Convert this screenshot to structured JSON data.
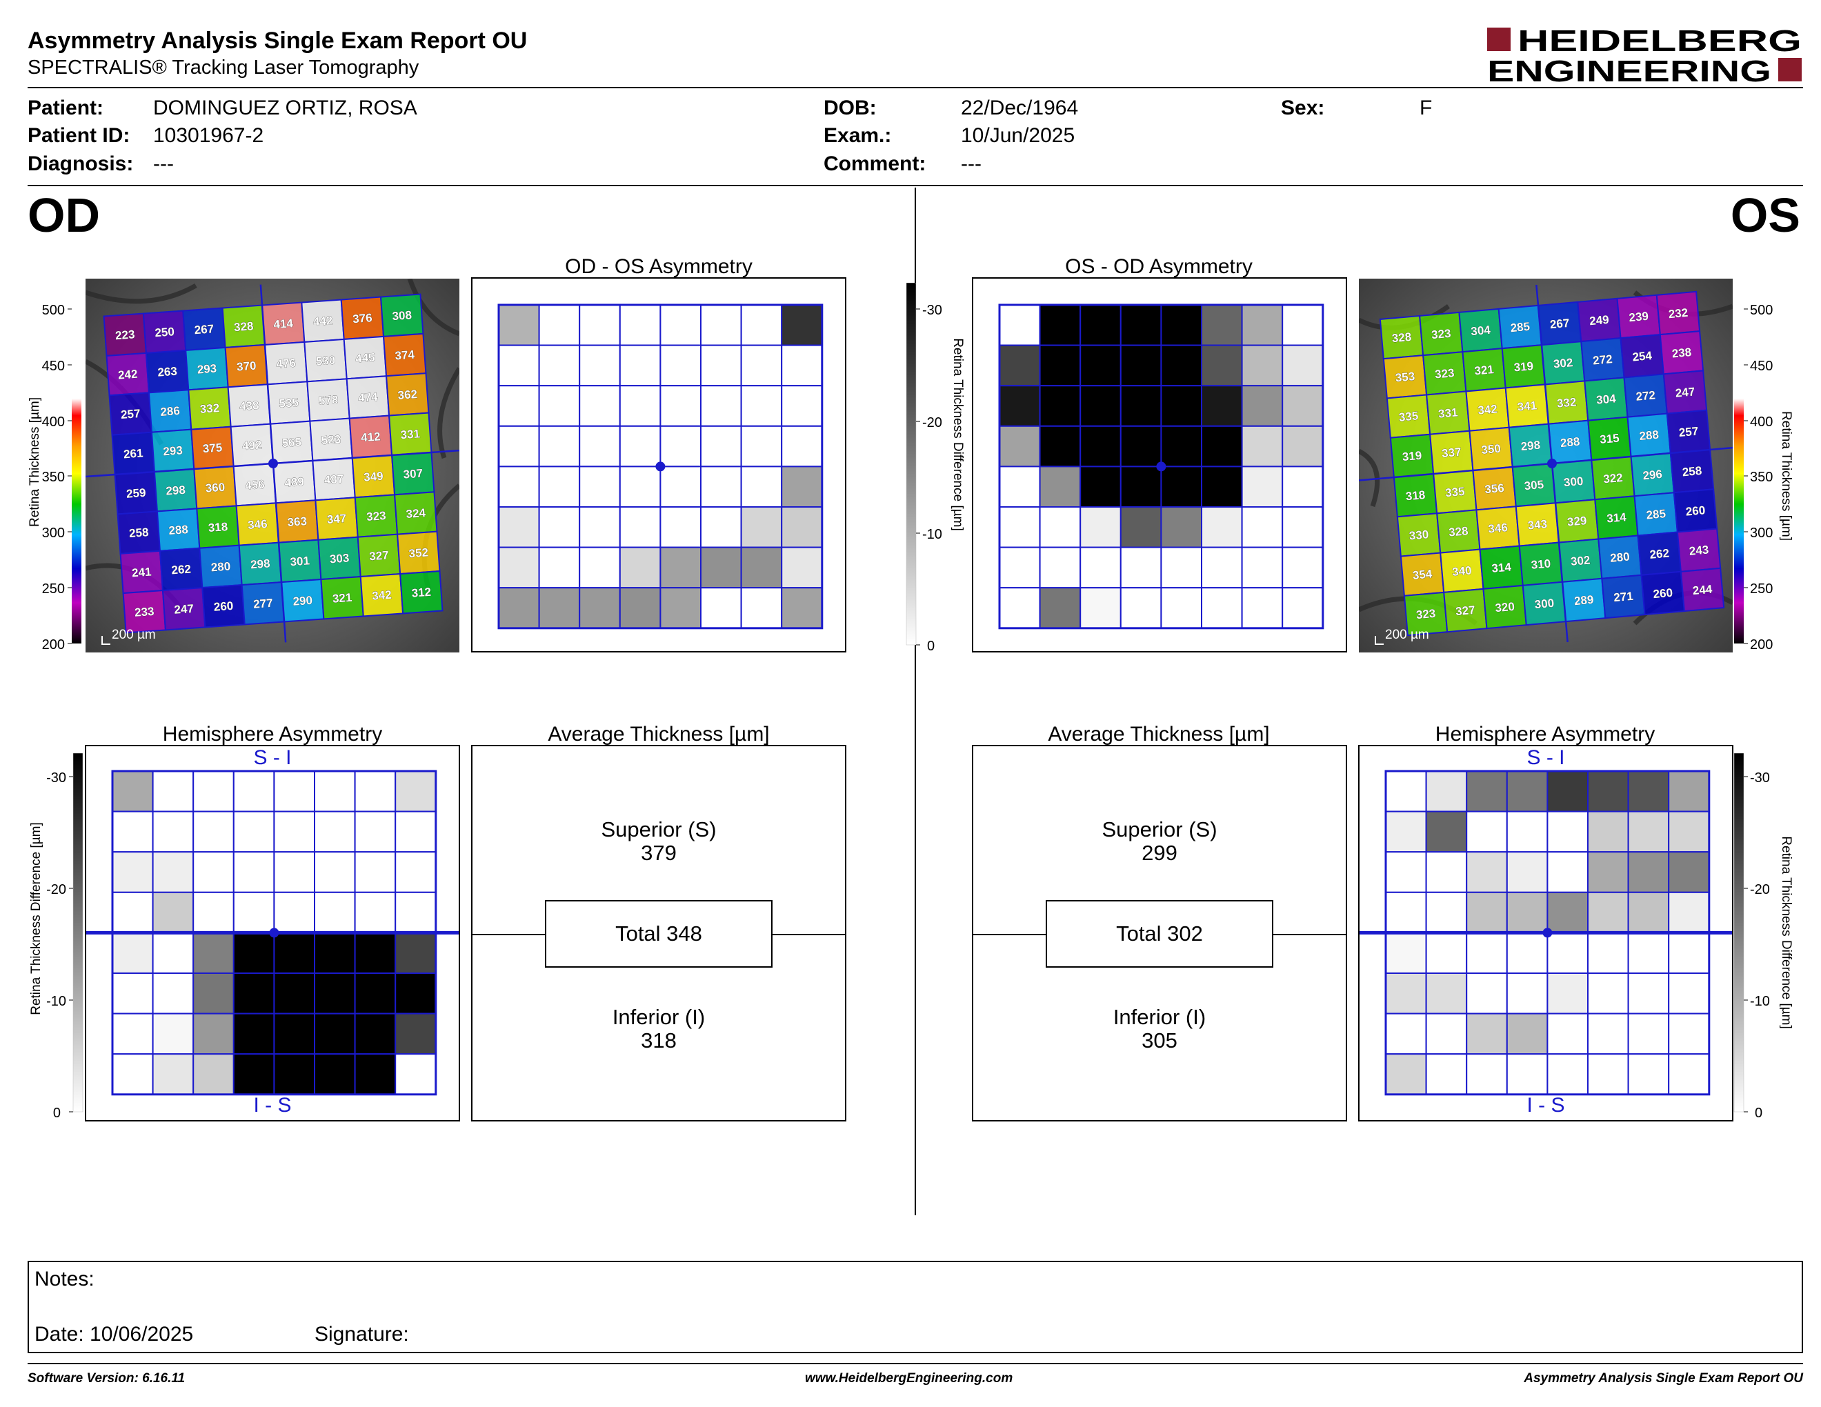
{
  "report": {
    "title": "Asymmetry Analysis Single Exam Report OU",
    "subtitle": "SPECTRALIS® Tracking Laser Tomography",
    "logo_line1": "HEIDELBERG",
    "logo_line2": "ENGINEERING"
  },
  "patient": {
    "patient_label": "Patient:",
    "patient_value": "DOMINGUEZ ORTIZ, ROSA",
    "id_label": "Patient ID:",
    "id_value": "10301967-2",
    "diagnosis_label": "Diagnosis:",
    "diagnosis_value": "---",
    "dob_label": "DOB:",
    "dob_value": "22/Dec/1964",
    "exam_label": "Exam.:",
    "exam_value": "10/Jun/2025",
    "comment_label": "Comment:",
    "comment_value": "---",
    "sex_label": "Sex:",
    "sex_value": "F"
  },
  "eyes": {
    "od": "OD",
    "os": "OS"
  },
  "panels": {
    "od_os_asym": "OD - OS Asymmetry",
    "os_od_asym": "OS - OD Asymmetry",
    "hemi_od": "Hemisphere Asymmetry",
    "hemi_os": "Hemisphere Asymmetry",
    "avg_od": "Average Thickness [µm]",
    "avg_os": "Average Thickness [µm]",
    "hemi_top": "S - I",
    "hemi_bottom": "I - S"
  },
  "scales": {
    "thickness_label": "Retina  Thickness [µm]",
    "thickness_ticks": [
      "500",
      "450",
      "400",
      "350",
      "300",
      "250",
      "200"
    ],
    "diff_label": "Retina Thickness Difference [µm]",
    "diff_ticks": [
      "-30",
      "-20",
      "-10",
      "0"
    ],
    "scale_bar": "200 µm"
  },
  "od_thickness": [
    [
      223,
      250,
      267,
      328,
      414,
      442,
      376,
      308
    ],
    [
      242,
      263,
      293,
      370,
      476,
      530,
      445,
      374
    ],
    [
      257,
      286,
      332,
      438,
      535,
      578,
      474,
      362
    ],
    [
      261,
      293,
      375,
      492,
      565,
      523,
      412,
      331
    ],
    [
      259,
      298,
      360,
      456,
      489,
      487,
      349,
      307
    ],
    [
      258,
      288,
      318,
      346,
      363,
      347,
      323,
      324
    ],
    [
      241,
      262,
      280,
      298,
      301,
      303,
      327,
      352
    ],
    [
      233,
      247,
      260,
      277,
      290,
      321,
      342,
      312
    ]
  ],
  "os_thickness": [
    [
      328,
      323,
      304,
      285,
      267,
      249,
      239,
      232
    ],
    [
      353,
      323,
      321,
      319,
      302,
      272,
      254,
      238
    ],
    [
      335,
      331,
      342,
      341,
      332,
      304,
      272,
      247
    ],
    [
      319,
      337,
      350,
      298,
      288,
      315,
      288,
      257
    ],
    [
      318,
      335,
      356,
      305,
      300,
      322,
      296,
      258
    ],
    [
      330,
      328,
      346,
      343,
      329,
      314,
      285,
      260
    ],
    [
      354,
      340,
      314,
      310,
      302,
      280,
      262,
      243
    ],
    [
      323,
      327,
      320,
      300,
      289,
      271,
      260,
      244
    ]
  ],
  "od_os_diff": [
    [
      -9,
      0,
      0,
      0,
      0,
      0,
      0,
      -24
    ],
    [
      0,
      0,
      0,
      0,
      0,
      0,
      0,
      0
    ],
    [
      0,
      0,
      0,
      0,
      0,
      0,
      0,
      0
    ],
    [
      0,
      0,
      0,
      0,
      0,
      0,
      0,
      0
    ],
    [
      0,
      0,
      0,
      0,
      0,
      0,
      0,
      -11
    ],
    [
      -3,
      0,
      0,
      0,
      0,
      0,
      -5,
      -6
    ],
    [
      -3,
      0,
      0,
      -5,
      -11,
      -13,
      -13,
      -3
    ],
    [
      -12,
      -12,
      -12,
      -13,
      -11,
      0,
      0,
      -11
    ]
  ],
  "os_od_diff": [
    [
      0,
      -30,
      -30,
      -30,
      -30,
      -18,
      -10,
      0
    ],
    [
      -22,
      -30,
      -30,
      -30,
      -30,
      -20,
      -8,
      -3
    ],
    [
      -27,
      -30,
      -30,
      -30,
      -30,
      -27,
      -13,
      -7
    ],
    [
      -11,
      -30,
      -30,
      -30,
      -30,
      -30,
      -5,
      -6
    ],
    [
      0,
      -13,
      -30,
      -30,
      -30,
      -30,
      -2,
      0
    ],
    [
      0,
      0,
      -2,
      -19,
      -15,
      -2,
      0,
      0
    ],
    [
      0,
      0,
      0,
      0,
      0,
      0,
      0,
      0
    ],
    [
      0,
      -16,
      -1,
      0,
      0,
      0,
      0,
      0
    ]
  ],
  "hemi_od_diff": [
    [
      -10,
      0,
      0,
      0,
      0,
      0,
      0,
      -4
    ],
    [
      0,
      0,
      0,
      0,
      0,
      0,
      0,
      0
    ],
    [
      -2,
      -2,
      0,
      0,
      0,
      0,
      0,
      0
    ],
    [
      0,
      -6,
      0,
      0,
      0,
      0,
      0,
      0
    ],
    [
      -2,
      0,
      -15,
      -30,
      -30,
      -30,
      -30,
      -22
    ],
    [
      0,
      0,
      -16,
      -30,
      -30,
      -30,
      -30,
      -30
    ],
    [
      0,
      -1,
      -12,
      -30,
      -30,
      -30,
      -30,
      -22
    ],
    [
      0,
      -3,
      -6,
      -30,
      -30,
      -30,
      -30,
      0
    ]
  ],
  "hemi_os_diff": [
    [
      0,
      -3,
      -16,
      -16,
      -23,
      -21,
      -20,
      -11
    ],
    [
      -2,
      -18,
      0,
      0,
      0,
      -6,
      -5,
      -5
    ],
    [
      0,
      0,
      -4,
      -2,
      0,
      -10,
      -13,
      -15
    ],
    [
      0,
      0,
      -7,
      -8,
      -13,
      -6,
      -7,
      -2
    ],
    [
      -1,
      0,
      0,
      0,
      0,
      0,
      0,
      0
    ],
    [
      -4,
      -4,
      0,
      0,
      -2,
      0,
      0,
      0
    ],
    [
      0,
      0,
      -6,
      -8,
      0,
      0,
      0,
      0
    ],
    [
      -5,
      0,
      0,
      0,
      0,
      0,
      0,
      0
    ]
  ],
  "avg_od": {
    "superior_label": "Superior (S)",
    "superior": "379",
    "total": "Total 348",
    "inferior_label": "Inferior (I)",
    "inferior": "318"
  },
  "avg_os": {
    "superior_label": "Superior (S)",
    "superior": "299",
    "total": "Total 302",
    "inferior_label": "Inferior (I)",
    "inferior": "305"
  },
  "notes": {
    "notes_label": "Notes:",
    "date": "Date: 10/06/2025",
    "signature": "Signature:"
  },
  "footer": {
    "left": "Software Version: 6.16.11",
    "center": "www.HeidelbergEngineering.com",
    "right": "Asymmetry Analysis Single Exam Report OU"
  },
  "colors": {
    "grid_blue": "#1a1acc",
    "logo_red": "#8a1b2b"
  }
}
